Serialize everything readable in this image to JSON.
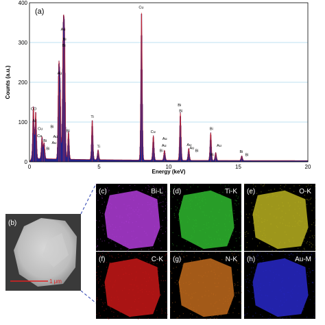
{
  "chart_data": {
    "type": "line",
    "panel_label": "(a)",
    "xlabel": "Energy (keV)",
    "ylabel": "Counts (a.u.)",
    "xlim": [
      0,
      20
    ],
    "ylim": [
      0,
      400
    ],
    "x_ticks": [
      "0",
      "5",
      "10",
      "15",
      "20"
    ],
    "y_ticks": [
      "0",
      "100",
      "200",
      "300",
      "400"
    ],
    "grid": true,
    "peaks": [
      {
        "x": 0.28,
        "y": 130
      },
      {
        "x": 0.45,
        "y": 118
      },
      {
        "x": 0.9,
        "y": 55
      },
      {
        "x": 1.05,
        "y": 40
      },
      {
        "x": 2.1,
        "y": 215
      },
      {
        "x": 2.2,
        "y": 175
      },
      {
        "x": 2.42,
        "y": 305
      },
      {
        "x": 2.52,
        "y": 290
      },
      {
        "x": 2.8,
        "y": 70
      },
      {
        "x": 4.51,
        "y": 100
      },
      {
        "x": 4.93,
        "y": 25
      },
      {
        "x": 8.05,
        "y": 375
      },
      {
        "x": 8.9,
        "y": 62
      },
      {
        "x": 9.7,
        "y": 25
      },
      {
        "x": 10.84,
        "y": 120
      },
      {
        "x": 11.44,
        "y": 30
      },
      {
        "x": 13.02,
        "y": 70
      },
      {
        "x": 13.38,
        "y": 20
      },
      {
        "x": 15.25,
        "y": 12
      }
    ],
    "peak_labels": [
      {
        "text": "CO",
        "x": 0.1,
        "y": 130
      },
      {
        "text": "N",
        "x": 0.25,
        "y": 100
      },
      {
        "text": "Cu",
        "x": 0.6,
        "y": 80
      },
      {
        "text": "Ca",
        "x": 0.55,
        "y": 62
      },
      {
        "text": "Bi",
        "x": 1.0,
        "y": 50
      },
      {
        "text": "Bi",
        "x": 1.5,
        "y": 85
      },
      {
        "text": "Au",
        "x": 1.7,
        "y": 60
      },
      {
        "text": "Au",
        "x": 1.6,
        "y": 45
      },
      {
        "text": "Bi",
        "x": 1.2,
        "y": 30
      },
      {
        "text": "Au",
        "x": 2.0,
        "y": 220
      },
      {
        "text": "Au",
        "x": 2.25,
        "y": 330
      },
      {
        "text": "Bi",
        "x": 2.4,
        "y": 305
      },
      {
        "text": "Bi",
        "x": 2.35,
        "y": 290
      },
      {
        "text": "Bi",
        "x": 2.65,
        "y": 75
      },
      {
        "text": "Ti",
        "x": 4.4,
        "y": 110
      },
      {
        "text": "Ti",
        "x": 4.85,
        "y": 35
      },
      {
        "text": "Cu",
        "x": 7.85,
        "y": 385
      },
      {
        "text": "Cu",
        "x": 8.7,
        "y": 72
      },
      {
        "text": "Au",
        "x": 9.55,
        "y": 55
      },
      {
        "text": "Au",
        "x": 9.5,
        "y": 38
      },
      {
        "text": "Bi",
        "x": 9.35,
        "y": 25
      },
      {
        "text": "Bi",
        "x": 10.65,
        "y": 140
      },
      {
        "text": "Bi",
        "x": 10.75,
        "y": 125
      },
      {
        "text": "Au",
        "x": 11.3,
        "y": 40
      },
      {
        "text": "Au",
        "x": 11.5,
        "y": 32
      },
      {
        "text": "Bi",
        "x": 11.9,
        "y": 25
      },
      {
        "text": "Bi",
        "x": 12.95,
        "y": 80
      },
      {
        "text": "Au",
        "x": 13.45,
        "y": 38
      },
      {
        "text": "Bi",
        "x": 13.0,
        "y": 15
      },
      {
        "text": "Bi",
        "x": 15.1,
        "y": 22
      },
      {
        "text": "Bi",
        "x": 15.5,
        "y": 15
      }
    ]
  },
  "sem": {
    "label": "(b)",
    "scalebar": "1 μm"
  },
  "maps": [
    {
      "label": "(c)",
      "element": "Bi-L",
      "color": "#b03cd8"
    },
    {
      "label": "(d)",
      "element": "Ti-K",
      "color": "#2fb82f"
    },
    {
      "label": "(e)",
      "element": "O-K",
      "color": "#b8b020"
    },
    {
      "label": "(f)",
      "element": "C-K",
      "color": "#c81818"
    },
    {
      "label": "(g)",
      "element": "N-K",
      "color": "#c06a1c"
    },
    {
      "label": "(h)",
      "element": "Au-M",
      "color": "#2828c8"
    }
  ]
}
